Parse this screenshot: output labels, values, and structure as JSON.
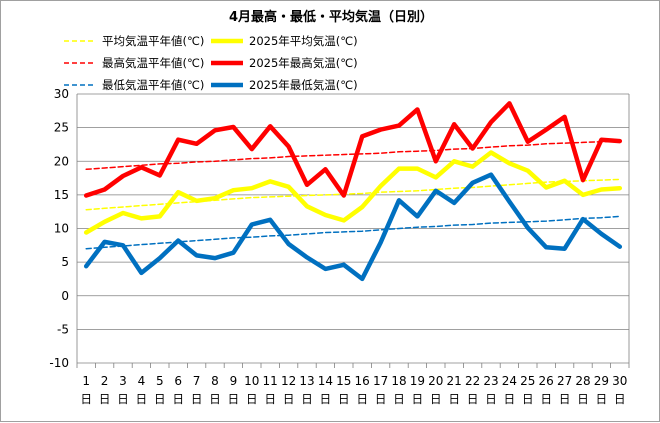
{
  "chart_data": {
    "type": "line",
    "title": "4月最高・最低・平均気温（日別）",
    "xlabel": "",
    "ylabel": "",
    "ylim": [
      -10,
      30
    ],
    "yticks": [
      -10,
      -5,
      0,
      5,
      10,
      15,
      20,
      25,
      30
    ],
    "grid": "horizontal",
    "legend_position": "top",
    "categories": [
      "1",
      "2",
      "3",
      "4",
      "5",
      "6",
      "7",
      "8",
      "9",
      "10",
      "11",
      "12",
      "13",
      "14",
      "15",
      "16",
      "17",
      "18",
      "19",
      "20",
      "21",
      "22",
      "23",
      "24",
      "25",
      "26",
      "27",
      "28",
      "29",
      "30"
    ],
    "category_unit": "日",
    "series": [
      {
        "name": "平均気温平年値(℃)",
        "color": "#ffff00",
        "style": "dashed",
        "values": [
          12.8,
          13.0,
          13.2,
          13.4,
          13.6,
          13.8,
          14.0,
          14.2,
          14.4,
          14.6,
          14.7,
          14.8,
          14.9,
          15.0,
          15.1,
          15.2,
          15.4,
          15.5,
          15.6,
          15.8,
          16.0,
          16.1,
          16.3,
          16.5,
          16.7,
          16.9,
          17.0,
          17.1,
          17.2,
          17.3
        ]
      },
      {
        "name": "2025年平均気温(℃)",
        "color": "#ffff00",
        "style": "solid",
        "values": [
          9.4,
          11.0,
          12.3,
          11.5,
          11.8,
          15.4,
          14.1,
          14.5,
          15.7,
          16.0,
          17.0,
          16.2,
          13.3,
          12.0,
          11.2,
          13.2,
          16.3,
          18.9,
          18.9,
          17.6,
          20.0,
          19.2,
          21.3,
          19.7,
          18.6,
          16.1,
          17.1,
          15.0,
          15.8,
          16.0
        ]
      },
      {
        "name": "最高気温平年値(℃)",
        "color": "#ff0000",
        "style": "dashed",
        "values": [
          18.8,
          19.0,
          19.2,
          19.4,
          19.6,
          19.7,
          19.9,
          20.0,
          20.2,
          20.4,
          20.5,
          20.7,
          20.8,
          20.9,
          21.0,
          21.1,
          21.2,
          21.4,
          21.5,
          21.6,
          21.8,
          21.9,
          22.1,
          22.3,
          22.4,
          22.6,
          22.7,
          22.8,
          22.9,
          23.0
        ]
      },
      {
        "name": "2025年最高気温(℃)",
        "color": "#ff0000",
        "style": "solid",
        "values": [
          14.9,
          15.8,
          17.8,
          19.1,
          17.9,
          23.2,
          22.6,
          24.6,
          25.1,
          21.8,
          25.2,
          22.2,
          16.5,
          18.8,
          14.9,
          23.7,
          24.7,
          25.3,
          27.7,
          20.0,
          25.5,
          21.9,
          25.8,
          28.6,
          22.9,
          24.7,
          26.6,
          17.2,
          23.2,
          23.0
        ]
      },
      {
        "name": "最低気温平年値(℃)",
        "color": "#0070c0",
        "style": "dashed",
        "values": [
          7.0,
          7.2,
          7.4,
          7.6,
          7.8,
          8.0,
          8.2,
          8.4,
          8.6,
          8.7,
          8.9,
          9.0,
          9.2,
          9.4,
          9.5,
          9.6,
          9.8,
          10.0,
          10.2,
          10.3,
          10.5,
          10.6,
          10.8,
          10.9,
          11.0,
          11.1,
          11.3,
          11.5,
          11.6,
          11.8
        ]
      },
      {
        "name": "2025年最低気温(℃)",
        "color": "#0070c0",
        "style": "solid",
        "values": [
          4.4,
          8.0,
          7.5,
          3.4,
          5.6,
          8.2,
          6.0,
          5.6,
          6.4,
          10.6,
          11.3,
          7.7,
          5.7,
          4.0,
          4.6,
          2.5,
          7.9,
          14.2,
          11.8,
          15.6,
          13.8,
          16.8,
          18.0,
          14.0,
          10.1,
          7.2,
          7.0,
          11.4,
          9.2,
          7.3
        ]
      }
    ]
  }
}
